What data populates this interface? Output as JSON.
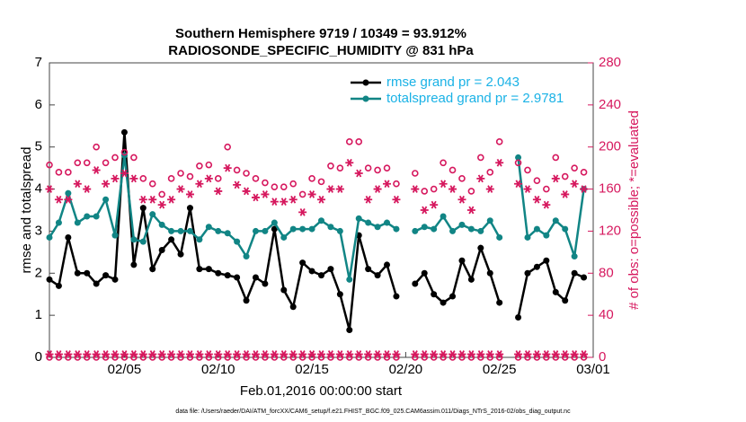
{
  "chart_data": {
    "type": "line",
    "title": "Southern Hemisphere 9719 / 10349 = 93.912%",
    "subtitle": "RADIOSONDE_SPECIFIC_HUMIDITY @ 831 hPa",
    "xlabel": "Feb.01,2016 00:00:00 start",
    "ylabel": "rmse and totalspread",
    "y2label": "# of obs: o=possible; *=evaluated",
    "footnote": "data file: /Users/raeder/DAI/ATM_forcXX/CAM6_setup/f.e21.FHIST_BGC.f09_025.CAM6assim.011/Diags_NTrS_2016-02/obs_diag_output.nc",
    "legend": "upper right",
    "xlim": [
      0,
      29
    ],
    "xticks": [
      {
        "value": 4,
        "label": "02/05"
      },
      {
        "value": 9,
        "label": "02/10"
      },
      {
        "value": 14,
        "label": "02/15"
      },
      {
        "value": 19,
        "label": "02/20"
      },
      {
        "value": 24,
        "label": "02/25"
      },
      {
        "value": 29,
        "label": "03/01"
      }
    ],
    "ylim": [
      0,
      7
    ],
    "yticks": [
      0,
      1,
      2,
      3,
      4,
      5,
      6,
      7
    ],
    "y2lim": [
      0,
      280
    ],
    "y2ticks": [
      0,
      40,
      80,
      120,
      160,
      200,
      240,
      280
    ],
    "y2color": "#d6185e",
    "x": [
      0,
      0.5,
      1,
      1.5,
      2,
      2.5,
      3,
      3.5,
      4,
      4.5,
      5,
      5.5,
      6,
      6.5,
      7,
      7.5,
      8,
      8.5,
      9,
      9.5,
      10,
      10.5,
      11,
      11.5,
      12,
      12.5,
      13,
      13.5,
      14,
      14.5,
      15,
      15.5,
      16,
      16.5,
      17,
      17.5,
      18,
      18.5,
      19,
      19.5,
      20,
      20.5,
      21,
      21.5,
      22,
      22.5,
      23,
      23.5,
      24,
      24.5,
      25,
      25.5,
      26,
      26.5,
      27,
      27.5,
      28,
      28.5
    ],
    "series": [
      {
        "name": "rmse grand pr = 2.043",
        "color": "#000000",
        "marker": "o-",
        "values": [
          1.85,
          1.7,
          2.85,
          2.0,
          2.0,
          1.75,
          1.95,
          1.85,
          5.35,
          2.2,
          3.55,
          2.1,
          2.55,
          2.8,
          2.45,
          3.55,
          2.1,
          2.1,
          2.0,
          1.95,
          1.9,
          1.35,
          1.9,
          1.75,
          3.05,
          1.6,
          1.2,
          2.25,
          2.05,
          1.95,
          2.1,
          1.5,
          0.65,
          2.9,
          2.1,
          1.95,
          2.2,
          1.45,
          null,
          1.75,
          2.0,
          1.5,
          1.3,
          1.45,
          2.3,
          1.85,
          2.6,
          2.0,
          1.3,
          null,
          0.95,
          2.0,
          2.15,
          2.3,
          1.55,
          1.35,
          2.0,
          1.9
        ]
      },
      {
        "name": "totalspread grand pr = 2.9781",
        "color": "#118585",
        "marker": "o-",
        "values": [
          2.85,
          3.2,
          3.9,
          3.2,
          3.35,
          3.35,
          3.75,
          2.9,
          4.8,
          2.8,
          2.75,
          3.4,
          3.15,
          3.0,
          3.0,
          3.0,
          2.8,
          3.1,
          3.0,
          2.95,
          2.75,
          2.4,
          3.0,
          3.0,
          3.2,
          2.85,
          3.05,
          3.05,
          3.05,
          3.25,
          3.1,
          3.0,
          1.85,
          3.3,
          3.2,
          3.1,
          3.2,
          3.05,
          null,
          3.0,
          3.1,
          3.05,
          3.35,
          3.0,
          3.15,
          3.05,
          3.0,
          3.25,
          2.85,
          null,
          4.75,
          2.85,
          3.05,
          2.9,
          3.25,
          3.05,
          2.4,
          4.0
        ]
      },
      {
        "color": "#d6185e",
        "marker": "o",
        "axis": "y2",
        "values": [
          183,
          176,
          176,
          185,
          185,
          200,
          185,
          190,
          195,
          190,
          170,
          165,
          155,
          170,
          175,
          172,
          182,
          183,
          170,
          200,
          178,
          175,
          170,
          166,
          162,
          162,
          165,
          155,
          170,
          167,
          182,
          180,
          205,
          205,
          180,
          178,
          180,
          165,
          null,
          175,
          158,
          160,
          185,
          178,
          170,
          158,
          190,
          176,
          205,
          null,
          185,
          178,
          168,
          160,
          190,
          172,
          180,
          176
        ]
      },
      {
        "color": "#d6185e",
        "marker": "*",
        "axis": "y2",
        "values": [
          160,
          150,
          150,
          165,
          160,
          178,
          165,
          170,
          175,
          170,
          150,
          150,
          145,
          150,
          160,
          155,
          165,
          170,
          158,
          180,
          164,
          158,
          152,
          155,
          148,
          148,
          150,
          138,
          155,
          150,
          160,
          160,
          185,
          175,
          150,
          160,
          165,
          150,
          null,
          160,
          140,
          145,
          165,
          160,
          150,
          140,
          170,
          160,
          185,
          null,
          165,
          160,
          150,
          145,
          170,
          155,
          165,
          160
        ]
      },
      {
        "color": "#d6185e",
        "marker": "o",
        "axis": "y2",
        "values": [
          0,
          0,
          0,
          0,
          0,
          0,
          0,
          0,
          0,
          0,
          0,
          0,
          0,
          0,
          0,
          0,
          0,
          0,
          0,
          0,
          0,
          0,
          0,
          0,
          0,
          0,
          0,
          0,
          0,
          0,
          0,
          0,
          0,
          0,
          0,
          0,
          0,
          0,
          null,
          0,
          0,
          0,
          0,
          0,
          0,
          0,
          0,
          0,
          0,
          null,
          0,
          0,
          0,
          0,
          0,
          0,
          0,
          0
        ]
      },
      {
        "color": "#d6185e",
        "marker": "*",
        "axis": "y2",
        "values": [
          3,
          3,
          3,
          3,
          3,
          3,
          3,
          3,
          3,
          3,
          3,
          3,
          3,
          3,
          3,
          3,
          3,
          3,
          3,
          3,
          3,
          3,
          3,
          3,
          3,
          3,
          3,
          3,
          3,
          3,
          3,
          3,
          3,
          3,
          3,
          3,
          3,
          3,
          null,
          3,
          3,
          3,
          3,
          3,
          3,
          3,
          3,
          3,
          3,
          null,
          3,
          3,
          3,
          3,
          3,
          3,
          3,
          3
        ]
      }
    ]
  }
}
